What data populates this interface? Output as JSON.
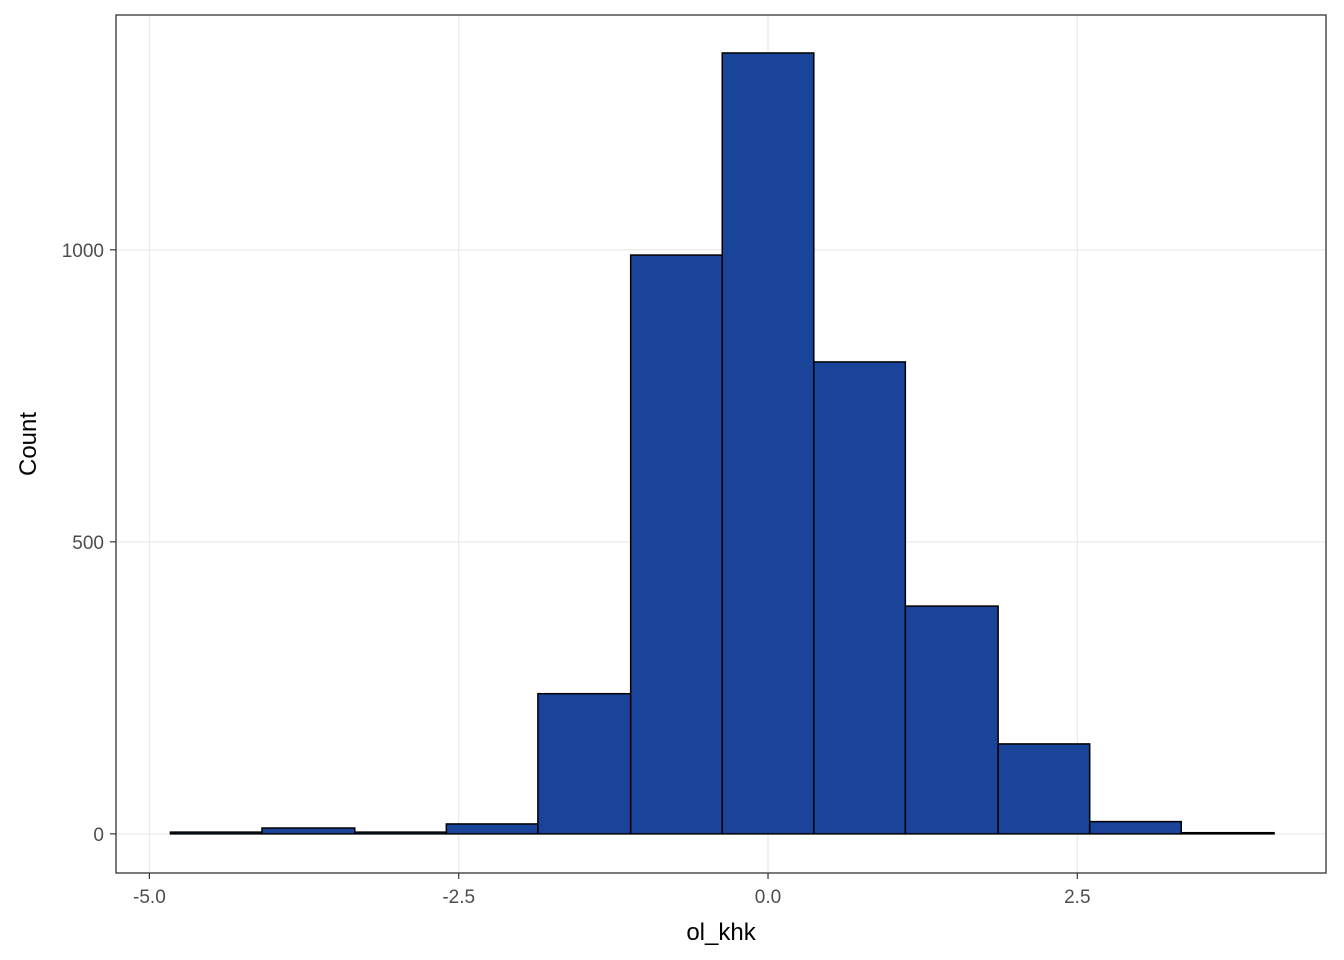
{
  "chart_data": {
    "type": "histogram",
    "x_label": "ol_khk",
    "y_label": "Count",
    "bins": [
      -4.83,
      -4.09,
      -3.34,
      -2.6,
      -1.86,
      -1.11,
      -0.37,
      0.37,
      1.11,
      1.86,
      2.6,
      3.34,
      4.09
    ],
    "values": [
      3,
      10,
      3,
      17,
      240,
      991,
      1337,
      808,
      390,
      154,
      21,
      2
    ],
    "color": "#1a4499",
    "xlim": [
      -5.27,
      4.51
    ],
    "ylim": [
      -67,
      1402
    ],
    "xticks": [
      {
        "value": -5,
        "label": "-5.0"
      },
      {
        "value": -2.5,
        "label": "-2.5"
      },
      {
        "value": 0,
        "label": "0.0"
      },
      {
        "value": 2.5,
        "label": "2.5"
      }
    ],
    "yticks": [
      0,
      500,
      1000
    ],
    "grid": true
  }
}
